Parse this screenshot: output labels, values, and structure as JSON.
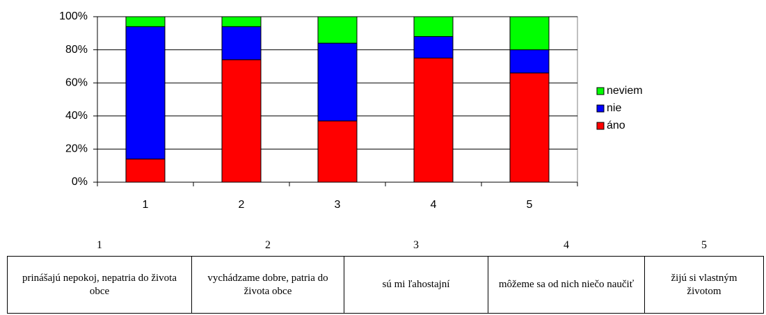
{
  "chart_data": {
    "type": "stacked_bar",
    "categories": [
      "1",
      "2",
      "3",
      "4",
      "5"
    ],
    "series": [
      {
        "name": "áno",
        "color": "#ff0000",
        "values": [
          14,
          74,
          37,
          75,
          66
        ]
      },
      {
        "name": "nie",
        "color": "#0000ff",
        "values": [
          80,
          20,
          47,
          13,
          14
        ]
      },
      {
        "name": "neviem",
        "color": "#00ff00",
        "values": [
          6,
          6,
          16,
          12,
          20
        ]
      }
    ],
    "ylim": [
      0,
      100
    ],
    "yticks": [
      {
        "value": 0,
        "label": "0%"
      },
      {
        "value": 20,
        "label": "20%"
      },
      {
        "value": 40,
        "label": "40%"
      },
      {
        "value": 60,
        "label": "60%"
      },
      {
        "value": 80,
        "label": "80%"
      },
      {
        "value": 100,
        "label": "100%"
      }
    ],
    "grid": true,
    "legend": "right"
  },
  "table": {
    "header": [
      "1",
      "2",
      "3",
      "4",
      "5"
    ],
    "rows": [
      [
        "prinášajú nepokoj, nepatria do života obce",
        "vychádzame dobre, patria do života obce",
        "sú mi ľahostajní",
        "môžeme sa od nich niečo naučiť",
        "žijú si vlastným životom"
      ]
    ]
  }
}
